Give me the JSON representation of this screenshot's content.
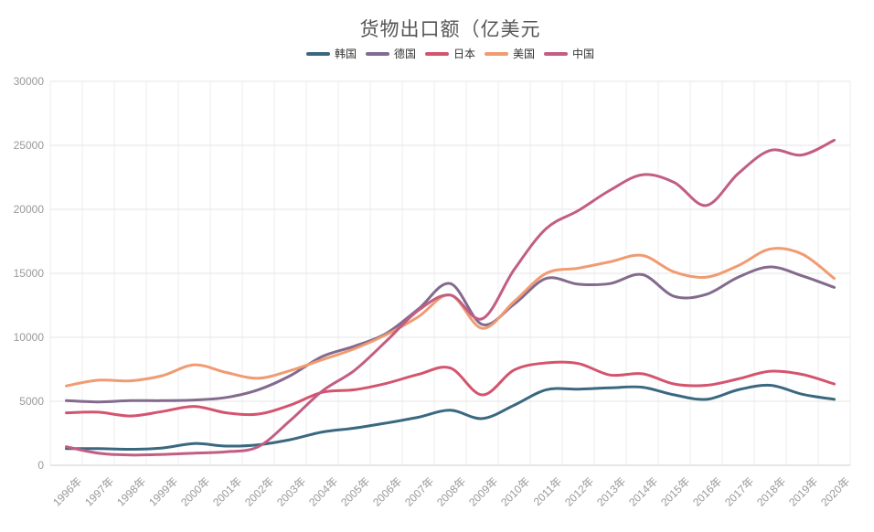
{
  "title": "货物出口额（亿美元",
  "chart_data": {
    "type": "line",
    "title": "货物出口额（亿美元",
    "xlabel": "",
    "ylabel": "",
    "ylim": [
      0,
      30000
    ],
    "ytick_step": 5000,
    "ytick_labels": [
      "0",
      "5000",
      "10000",
      "15000",
      "20000",
      "25000",
      "30000"
    ],
    "grid": true,
    "smooth": true,
    "line_width": 3,
    "legend_position": "top-center",
    "categories": [
      "1996年",
      "1997年",
      "1998年",
      "1999年",
      "2000年",
      "2001年",
      "2002年",
      "2003年",
      "2004年",
      "2005年",
      "2006年",
      "2007年",
      "2008年",
      "2009年",
      "2010年",
      "2011年",
      "2012年",
      "2013年",
      "2014年",
      "2015年",
      "2016年",
      "2017年",
      "2018年",
      "2019年",
      "2020年"
    ],
    "series": [
      {
        "id": "korea",
        "name": "韩国",
        "color": "#3a6880",
        "values": [
          1300,
          1300,
          1250,
          1350,
          1700,
          1500,
          1600,
          2000,
          2600,
          2900,
          3300,
          3750,
          4300,
          3650,
          4700,
          5900,
          5950,
          6050,
          6100,
          5500,
          5150,
          5900,
          6250,
          5550,
          5150
        ]
      },
      {
        "id": "germany",
        "name": "德国",
        "color": "#836a8e",
        "values": [
          5050,
          4950,
          5050,
          5050,
          5100,
          5300,
          5900,
          7000,
          8500,
          9300,
          10300,
          12200,
          14200,
          11000,
          12600,
          14600,
          14150,
          14200,
          14900,
          13200,
          13350,
          14700,
          15500,
          14800,
          13900
        ]
      },
      {
        "id": "japan",
        "name": "日本",
        "color": "#d4546e",
        "values": [
          4100,
          4150,
          3850,
          4200,
          4600,
          4100,
          4000,
          4700,
          5700,
          5900,
          6400,
          7100,
          7600,
          5500,
          7450,
          8000,
          7950,
          7050,
          7150,
          6350,
          6250,
          6750,
          7350,
          7100,
          6350
        ]
      },
      {
        "id": "usa",
        "name": "美国",
        "color": "#f09b72",
        "values": [
          6200,
          6650,
          6600,
          7000,
          7850,
          7250,
          6800,
          7400,
          8250,
          9100,
          10200,
          11600,
          13300,
          10700,
          12800,
          15000,
          15400,
          15900,
          16400,
          15100,
          14700,
          15600,
          16900,
          16500,
          14600
        ]
      },
      {
        "id": "china",
        "name": "中国",
        "color": "#c25d84",
        "values": [
          1450,
          950,
          800,
          850,
          950,
          1050,
          1450,
          3500,
          5800,
          7400,
          9700,
          12100,
          13300,
          11450,
          15300,
          18500,
          19900,
          21500,
          22700,
          22100,
          20300,
          22800,
          24600,
          24250,
          25400
        ]
      }
    ]
  },
  "colors": {
    "background": "#ffffff",
    "title_text": "#555555",
    "legend_text": "#333333",
    "axis_label": "#999999",
    "grid_h": "#e6e6e6",
    "grid_v": "#ededed",
    "axis_line": "#cccccc"
  }
}
